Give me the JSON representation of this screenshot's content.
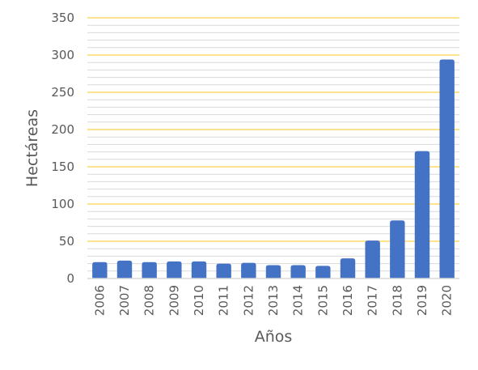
{
  "chart_data": {
    "type": "bar",
    "categories": [
      "2006",
      "2007",
      "2008",
      "2009",
      "2010",
      "2011",
      "2012",
      "2013",
      "2014",
      "2015",
      "2016",
      "2017",
      "2018",
      "2019",
      "2020"
    ],
    "values": [
      22,
      24,
      22,
      23,
      23,
      20,
      21,
      18,
      18,
      17,
      27,
      51,
      78,
      171,
      294
    ],
    "xlabel": "Años",
    "ylabel": "Hectáreas",
    "ylim": [
      0,
      350
    ],
    "yticks": [
      0,
      50,
      100,
      150,
      200,
      250,
      300,
      350
    ],
    "grid": true,
    "colors": {
      "bar": "#4472C4",
      "major_grid": "#FFD966",
      "minor_grid": "#D9D9D9",
      "axis": "#D9D9D9",
      "text": "#595959"
    }
  }
}
